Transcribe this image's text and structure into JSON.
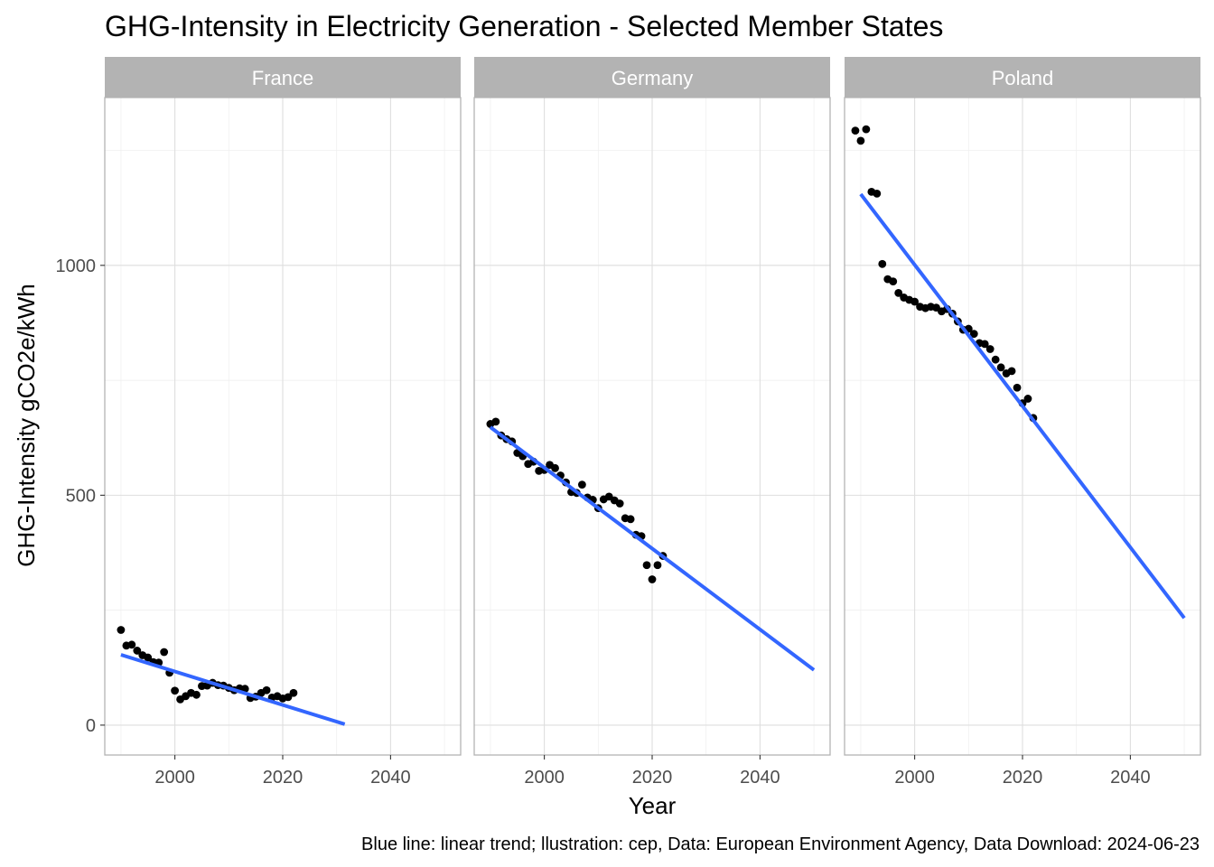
{
  "title": "GHG-Intensity in Electricity Generation - Selected Member States",
  "caption": "Blue line: linear trend; llustration: cep, Data: European Environment Agency, Data Download: 2024-06-23",
  "colors": {
    "points": "#000000",
    "trend": "#3366ff",
    "strip": "#b3b3b3",
    "grid": "#dedede",
    "border": "#b3b3b3"
  },
  "chart_data": {
    "type": "scatter",
    "title": "GHG-Intensity in Electricity Generation - Selected Member States",
    "xlabel": "Year",
    "ylabel": "GHG-Intensity gCO2e/kWh",
    "xlim": [
      1987,
      2053
    ],
    "ylim": [
      -65,
      1365
    ],
    "x_ticks": [
      2000,
      2020,
      2040
    ],
    "y_ticks": [
      0,
      500,
      1000
    ],
    "grid": true,
    "legend": "none",
    "facets": [
      {
        "name": "France",
        "points": [
          [
            1990,
            207
          ],
          [
            1991,
            173
          ],
          [
            1992,
            175
          ],
          [
            1993,
            162
          ],
          [
            1994,
            152
          ],
          [
            1995,
            147
          ],
          [
            1996,
            137
          ],
          [
            1997,
            136
          ],
          [
            1998,
            159
          ],
          [
            1999,
            114
          ],
          [
            2000,
            75
          ],
          [
            2001,
            56
          ],
          [
            2002,
            63
          ],
          [
            2003,
            70
          ],
          [
            2004,
            66
          ],
          [
            2005,
            85
          ],
          [
            2006,
            86
          ],
          [
            2007,
            92
          ],
          [
            2008,
            87
          ],
          [
            2009,
            86
          ],
          [
            2010,
            81
          ],
          [
            2011,
            76
          ],
          [
            2012,
            80
          ],
          [
            2013,
            79
          ],
          [
            2014,
            59
          ],
          [
            2015,
            62
          ],
          [
            2016,
            70
          ],
          [
            2017,
            76
          ],
          [
            2018,
            60
          ],
          [
            2019,
            63
          ],
          [
            2020,
            58
          ],
          [
            2021,
            61
          ],
          [
            2022,
            70
          ]
        ],
        "trend": {
          "x": [
            1990,
            2031.5
          ],
          "y": [
            153,
            2
          ]
        }
      },
      {
        "name": "Germany",
        "points": [
          [
            1990,
            655
          ],
          [
            1991,
            660
          ],
          [
            1992,
            630
          ],
          [
            1993,
            622
          ],
          [
            1994,
            617
          ],
          [
            1995,
            592
          ],
          [
            1996,
            585
          ],
          [
            1997,
            568
          ],
          [
            1998,
            573
          ],
          [
            1999,
            553
          ],
          [
            2000,
            555
          ],
          [
            2001,
            566
          ],
          [
            2002,
            559
          ],
          [
            2003,
            543
          ],
          [
            2004,
            528
          ],
          [
            2005,
            507
          ],
          [
            2006,
            505
          ],
          [
            2007,
            523
          ],
          [
            2008,
            495
          ],
          [
            2009,
            490
          ],
          [
            2010,
            472
          ],
          [
            2011,
            491
          ],
          [
            2012,
            497
          ],
          [
            2013,
            489
          ],
          [
            2014,
            482
          ],
          [
            2015,
            450
          ],
          [
            2016,
            448
          ],
          [
            2017,
            414
          ],
          [
            2018,
            411
          ],
          [
            2019,
            348
          ],
          [
            2020,
            317
          ],
          [
            2021,
            348
          ],
          [
            2022,
            368
          ]
        ],
        "trend": {
          "x": [
            1990,
            2050
          ],
          "y": [
            648,
            120
          ]
        }
      },
      {
        "name": "Poland",
        "points": [
          [
            1989,
            1293
          ],
          [
            1990,
            1271
          ],
          [
            1991,
            1296
          ],
          [
            1992,
            1160
          ],
          [
            1993,
            1156
          ],
          [
            1994,
            1003
          ],
          [
            1995,
            970
          ],
          [
            1996,
            965
          ],
          [
            1997,
            940
          ],
          [
            1998,
            930
          ],
          [
            1999,
            925
          ],
          [
            2000,
            921
          ],
          [
            2001,
            910
          ],
          [
            2002,
            907
          ],
          [
            2003,
            910
          ],
          [
            2004,
            908
          ],
          [
            2005,
            900
          ],
          [
            2006,
            905
          ],
          [
            2007,
            895
          ],
          [
            2008,
            878
          ],
          [
            2009,
            860
          ],
          [
            2010,
            862
          ],
          [
            2011,
            851
          ],
          [
            2012,
            831
          ],
          [
            2013,
            829
          ],
          [
            2014,
            818
          ],
          [
            2015,
            795
          ],
          [
            2016,
            778
          ],
          [
            2017,
            765
          ],
          [
            2018,
            770
          ],
          [
            2019,
            734
          ],
          [
            2020,
            700
          ],
          [
            2021,
            710
          ],
          [
            2022,
            668
          ]
        ],
        "trend": {
          "x": [
            1990,
            2050
          ],
          "y": [
            1155,
            233
          ]
        }
      }
    ]
  }
}
